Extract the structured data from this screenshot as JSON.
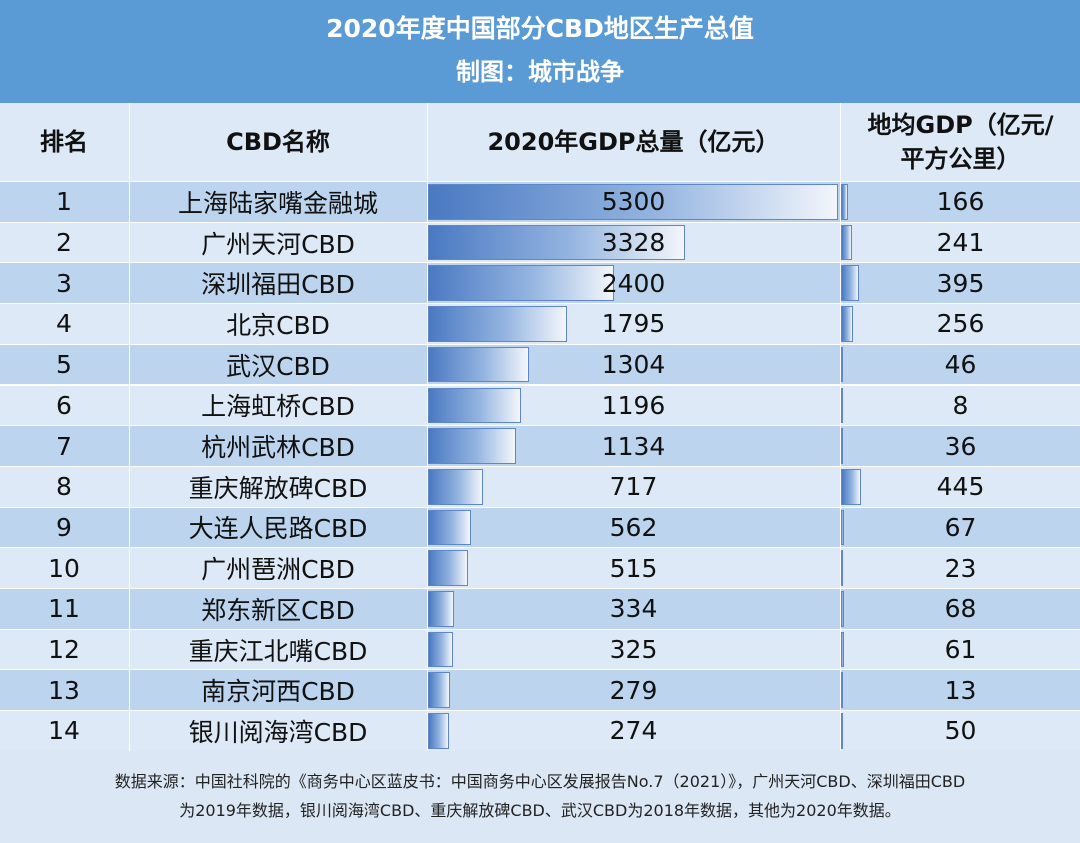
{
  "title": "2020年度中国部分CBD地区生产总值",
  "subtitle": "制图：城市战争",
  "headers": {
    "rank": "排名",
    "name": "CBD名称",
    "total": "2020年GDP总量（亿元）",
    "density_line1": "地均GDP（亿元/",
    "density_line2": "平方公里）"
  },
  "colors": {
    "header_bg": "#5b9bd5",
    "row_dark": "#bdd4ee",
    "row_light": "#dde9f6",
    "bar": "#4a79c2"
  },
  "chart_data": {
    "type": "table",
    "columns": [
      "排名",
      "CBD名称",
      "2020年GDP总量（亿元）",
      "地均GDP（亿元/平方公里）"
    ],
    "rows": [
      {
        "rank": "1",
        "name": "上海陆家嘴金融城",
        "total": 5300,
        "density": 166
      },
      {
        "rank": "2",
        "name": "广州天河CBD",
        "total": 3328,
        "density": 241
      },
      {
        "rank": "3",
        "name": "深圳福田CBD",
        "total": 2400,
        "density": 395
      },
      {
        "rank": "4",
        "name": "北京CBD",
        "total": 1795,
        "density": 256
      },
      {
        "rank": "5",
        "name": "武汉CBD",
        "total": 1304,
        "density": 46
      },
      {
        "rank": "6",
        "name": "上海虹桥CBD",
        "total": 1196,
        "density": 8
      },
      {
        "rank": "7",
        "name": "杭州武林CBD",
        "total": 1134,
        "density": 36
      },
      {
        "rank": "8",
        "name": "重庆解放碑CBD",
        "total": 717,
        "density": 445
      },
      {
        "rank": "9",
        "name": "大连人民路CBD",
        "total": 562,
        "density": 67
      },
      {
        "rank": "10",
        "name": "广州琶洲CBD",
        "total": 515,
        "density": 23
      },
      {
        "rank": "11",
        "name": "郑东新区CBD",
        "total": 334,
        "density": 68
      },
      {
        "rank": "12",
        "name": "重庆江北嘴CBD",
        "total": 325,
        "density": 61
      },
      {
        "rank": "13",
        "name": "南京河西CBD",
        "total": 279,
        "density": 13
      },
      {
        "rank": "14",
        "name": "银川阅海湾CBD",
        "total": 274,
        "density": 50
      }
    ]
  },
  "footer": {
    "line1": "数据来源：中国社科院的《商务中心区蓝皮书：中国商务中心区发展报告No.7（2021）》，广州天河CBD、深圳福田CBD",
    "line2": "为2019年数据，银川阅海湾CBD、重庆解放碑CBD、武汉CBD为2018年数据，其他为2020年数据。"
  }
}
